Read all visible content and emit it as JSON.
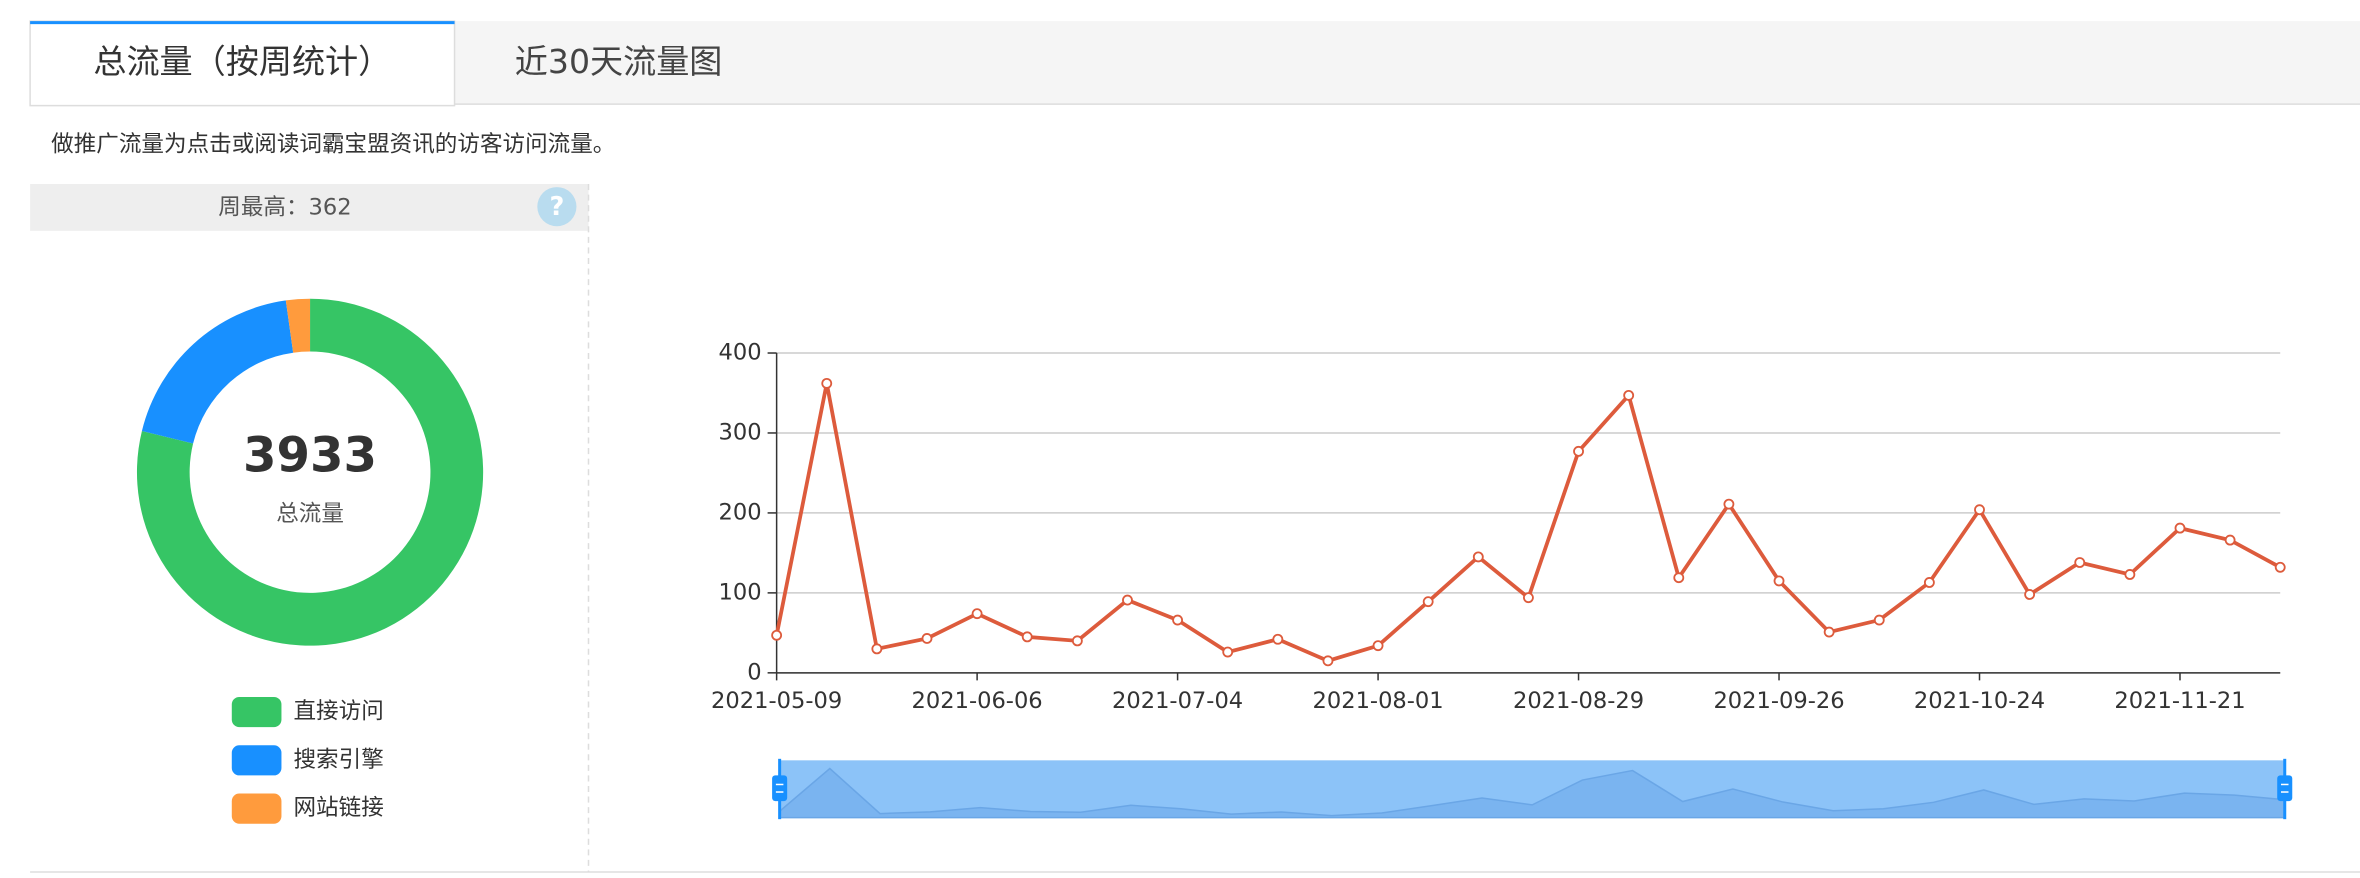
{
  "tabs": [
    "总流量（按周统计）",
    "近30天流量图"
  ],
  "description": "做推广流量为点击或阅读词霸宝盟资讯的访客访问流量。",
  "summary": {
    "label": "周最高：",
    "value": 362
  },
  "chart_data": [
    {
      "type": "pie",
      "center_value": 3933,
      "center_label": "总流量",
      "categories": [
        "直接访问",
        "搜索引擎",
        "网站链接"
      ],
      "values": [
        3100,
        745,
        88
      ],
      "colors": [
        "#36c565",
        "#1890ff",
        "#ff9b3d"
      ]
    },
    {
      "type": "line",
      "categories": [
        "2021-05-09",
        null,
        null,
        null,
        "2021-06-06",
        null,
        null,
        null,
        "2021-07-04",
        null,
        null,
        null,
        "2021-08-01",
        null,
        null,
        null,
        "2021-08-29",
        null,
        null,
        null,
        "2021-09-26",
        null,
        null,
        null,
        "2021-10-24",
        null,
        null,
        null,
        "2021-11-21",
        null,
        null
      ],
      "values": [
        47,
        362,
        30,
        43,
        74,
        45,
        40,
        91,
        66,
        26,
        42,
        15,
        34,
        89,
        145,
        94,
        277,
        347,
        119,
        211,
        115,
        51,
        66,
        113,
        204,
        98,
        138,
        123,
        181,
        166,
        132
      ],
      "color": "#dd5b3c",
      "ylim": [
        0,
        400
      ],
      "yticks": [
        0,
        100,
        200,
        300,
        400
      ],
      "grid": true
    }
  ]
}
